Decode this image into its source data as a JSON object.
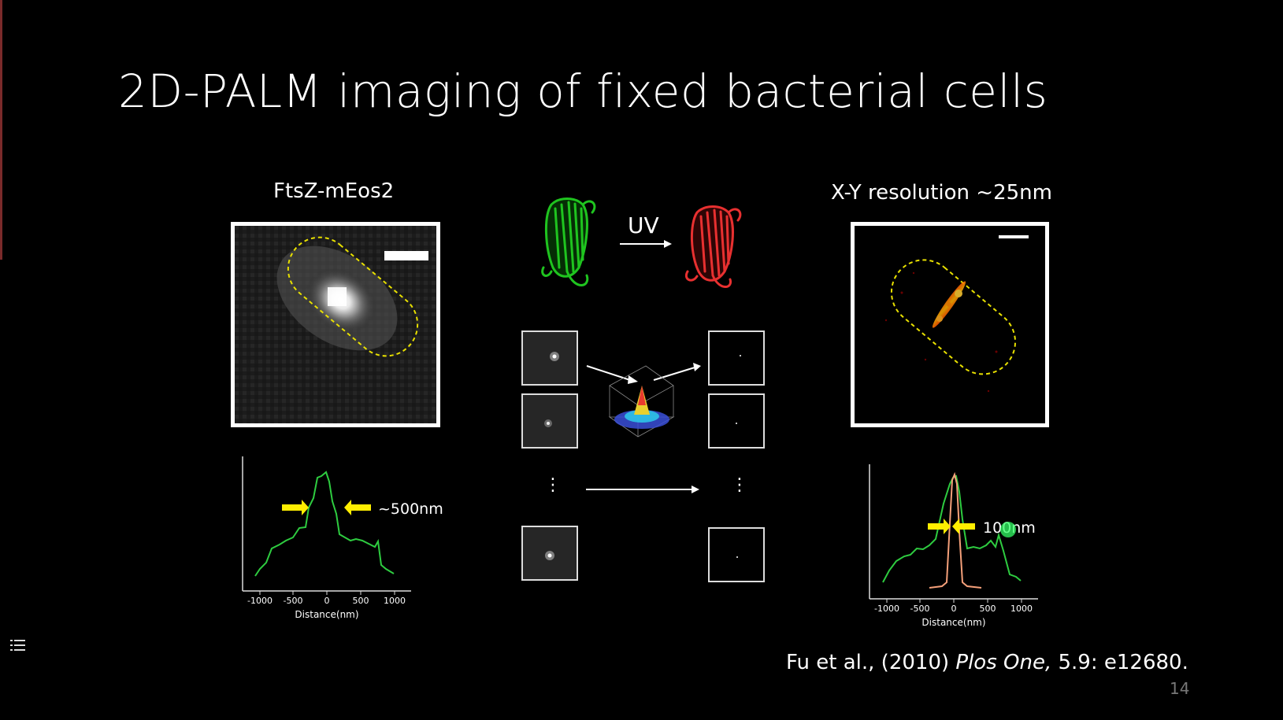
{
  "slide": {
    "title": "2D-PALM imaging of fixed bacterial cells",
    "page_number": "14"
  },
  "left_panel": {
    "label": "FtsZ-mEos2",
    "annotation": "~500nm",
    "xlabel": "Distance(nm)",
    "ticks": [
      "-1000",
      "-500",
      "0",
      "500",
      "1000"
    ]
  },
  "middle": {
    "uv_label": "UV",
    "ellipsis": "⋮"
  },
  "right_panel": {
    "label": "X-Y resolution ~25nm",
    "annotation": "100nm",
    "xlabel": "Distance(nm)",
    "ticks": [
      "-1000",
      "-500",
      "0",
      "500",
      "1000"
    ]
  },
  "citation": {
    "authors": "Fu et al., (2010) ",
    "journal": "Plos One,",
    "ref": " 5.9: e12680."
  },
  "colors": {
    "background": "#000000",
    "profile_green": "#2ecc40",
    "profile_orange": "#f5a07a",
    "arrow_yellow": "#ffee00",
    "dashed_outline": "#e8e000"
  },
  "icons": [
    "list-menu-icon",
    "arrow-right-icon",
    "protein-icon",
    "surface-plot-icon"
  ]
}
